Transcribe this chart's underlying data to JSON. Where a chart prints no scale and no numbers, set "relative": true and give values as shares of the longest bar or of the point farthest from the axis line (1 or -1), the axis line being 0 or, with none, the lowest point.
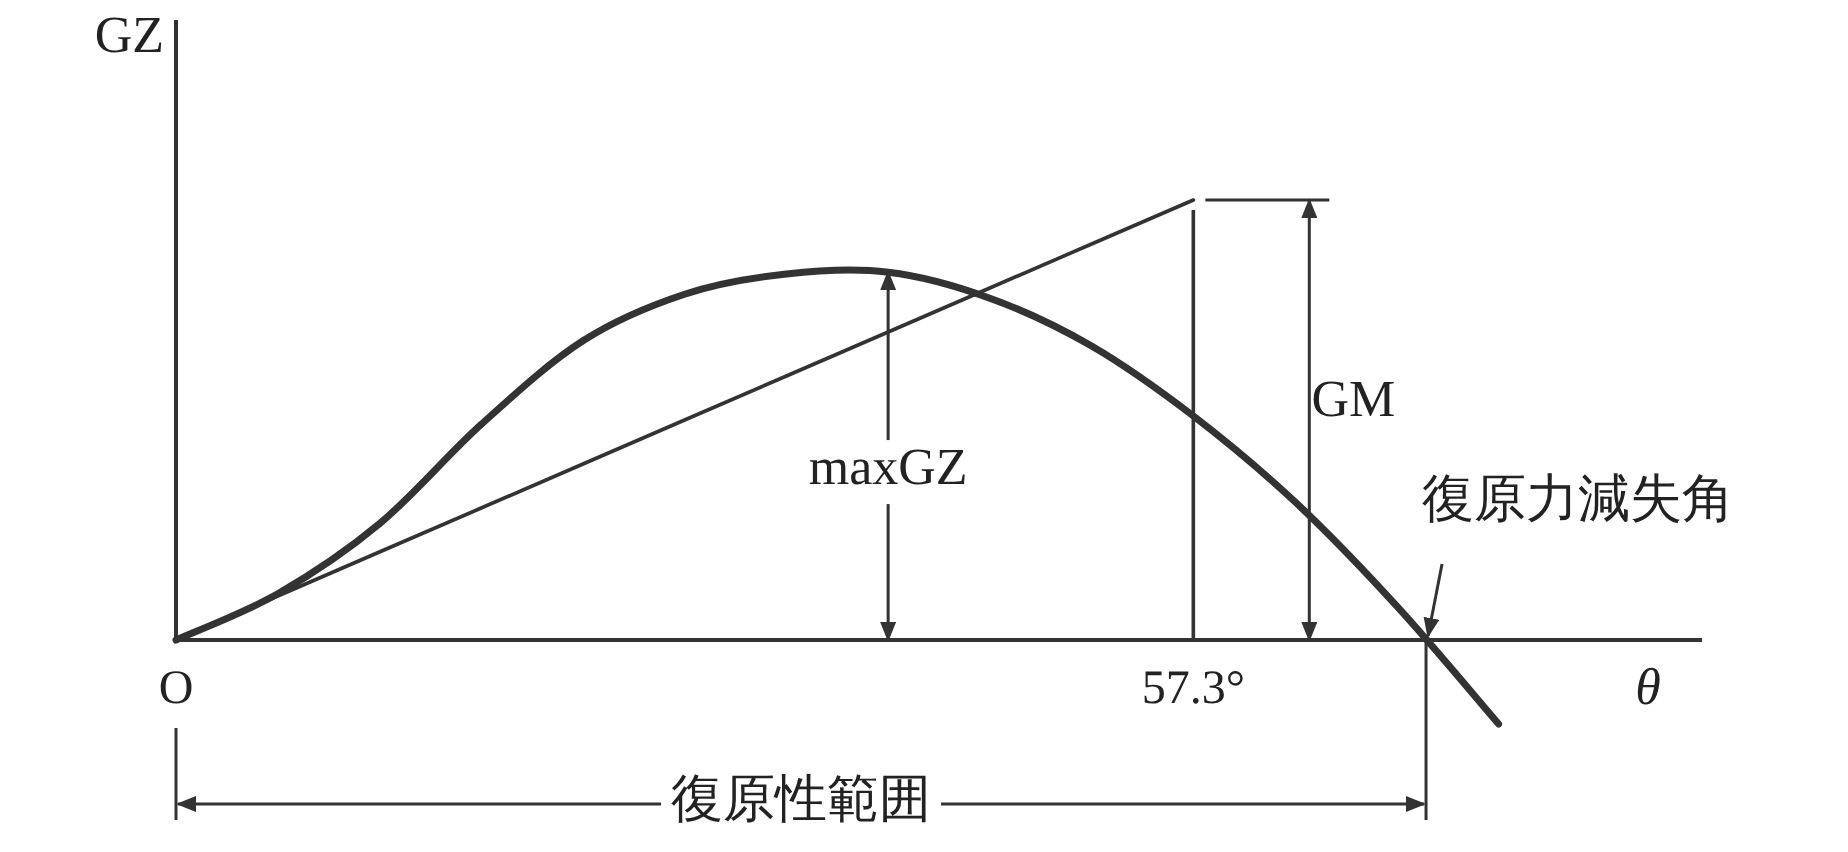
{
  "chart_data": {
    "type": "line",
    "relative": true,
    "ylabel": "GZ",
    "xlabel": "θ",
    "categories": [
      "O",
      null,
      null,
      null,
      null,
      null,
      null,
      null,
      null,
      null,
      "57.3°",
      null,
      null,
      null,
      null,
      null
    ],
    "series": [
      {
        "color": "#333333",
        "values": [
          0,
          0.105,
          0.264,
          0.49,
          0.68,
          0.786,
          0.832,
          0.836,
          0.777,
          0.668,
          0.509,
          0.314,
          0.077,
          -0.191,
          null,
          null
        ]
      },
      {
        "color": "#333333",
        "values": [
          0,
          0.1,
          0.2,
          0.3,
          0.4,
          0.5,
          0.6,
          0.7,
          0.8,
          0.9,
          1,
          null,
          null,
          null,
          null,
          null
        ]
      }
    ],
    "ref_lines": [
      {
        "axis": "x",
        "value": "57.3°"
      }
    ],
    "annotations": [
      "maxGZ",
      "GM",
      "復原力減失角",
      "復原性範囲"
    ]
  }
}
